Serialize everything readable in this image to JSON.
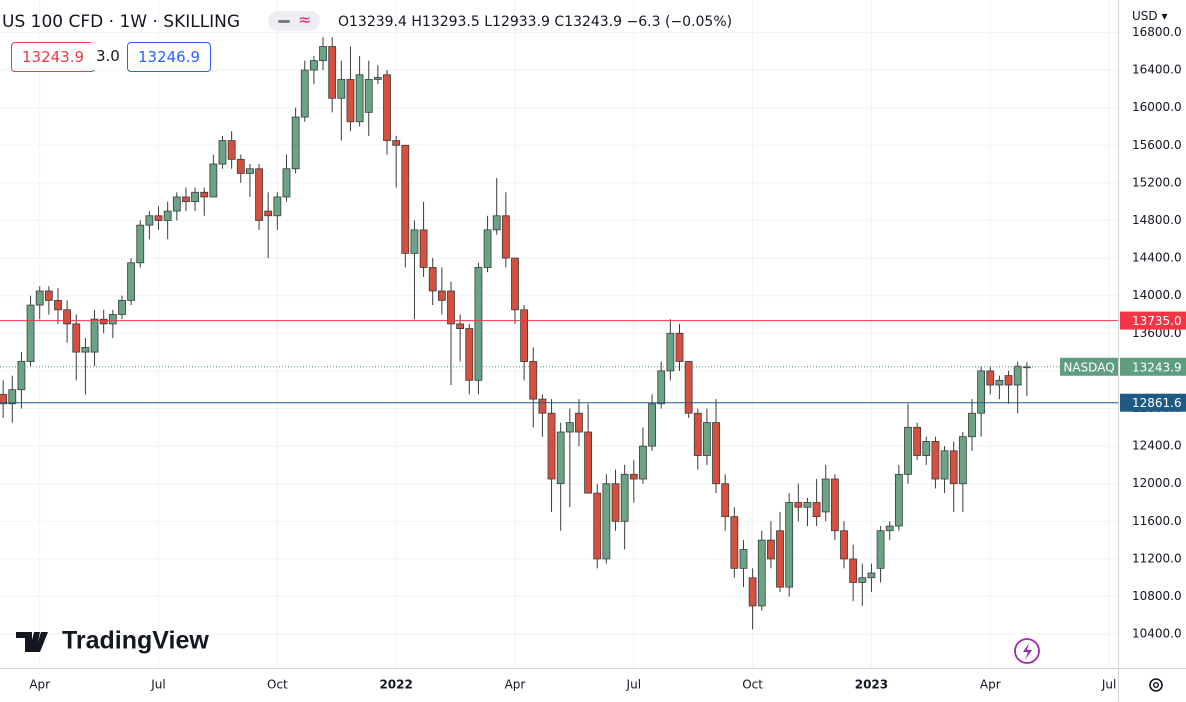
{
  "header": {
    "title": "US 100 CFD · 1W · SKILLING",
    "open": "O13239.4",
    "high": "H13293.5",
    "low": "L12933.9",
    "close": "C13243.9",
    "change": "−6.3 (−0.05%)",
    "bid": "13243.9",
    "spread": "3.0",
    "ask": "13246.9",
    "currency": "USD",
    "watermark": "TradingView"
  },
  "chart_data": {
    "type": "candlestick",
    "categories": [
      null,
      null,
      null,
      null,
      null,
      "Apr",
      null,
      null,
      null,
      null,
      null,
      null,
      null,
      null,
      null,
      null,
      null,
      null,
      "Jul",
      null,
      null,
      null,
      null,
      null,
      null,
      null,
      null,
      null,
      null,
      null,
      null,
      "Oct",
      null,
      null,
      null,
      null,
      null,
      null,
      null,
      null,
      null,
      null,
      null,
      null,
      "2022",
      null,
      null,
      null,
      null,
      null,
      null,
      null,
      null,
      null,
      null,
      null,
      null,
      "Apr",
      null,
      null,
      null,
      null,
      null,
      null,
      null,
      null,
      null,
      null,
      null,
      null,
      "Jul",
      null,
      null,
      null,
      null,
      null,
      null,
      null,
      null,
      null,
      null,
      null,
      null,
      "Oct",
      null,
      null,
      null,
      null,
      null,
      null,
      null,
      null,
      null,
      null,
      null,
      null,
      "2023",
      null,
      null,
      null,
      null,
      null,
      null,
      null,
      null,
      null,
      null,
      null,
      null,
      "Apr",
      null,
      null,
      null,
      null,
      null,
      null,
      null,
      null,
      null,
      null,
      null,
      null,
      "Jul",
      null
    ],
    "open": [
      12800,
      12950,
      12850,
      13000,
      13300,
      13900,
      14050,
      13950,
      13850,
      13700,
      13400,
      13400,
      13750,
      13700,
      13800,
      13950,
      14350,
      14750,
      14850,
      14800,
      14900,
      15050,
      15000,
      15100,
      15050,
      15400,
      15650,
      15450,
      15300,
      15350,
      14900,
      14850,
      15050,
      15350,
      15900,
      16400,
      16500,
      16650,
      16100,
      16300,
      15850,
      15950,
      16300,
      16350,
      15650,
      15600,
      14450,
      14700,
      14300,
      14050,
      14050,
      13700,
      13650,
      13100,
      14300,
      14700,
      14850,
      14400,
      13850,
      13300,
      12900,
      12750,
      12000,
      12550,
      12750,
      12550,
      11900,
      11200,
      12000,
      11600,
      12100,
      12050,
      12400,
      12850,
      13200,
      13600,
      13300,
      12750,
      12300,
      12650,
      12000,
      11650,
      11100,
      11000,
      10700,
      11400,
      11500,
      10900,
      11800,
      11750,
      11800,
      11700,
      12050,
      11500,
      11200,
      10950,
      11000,
      11100,
      11500,
      11550,
      12100,
      12600,
      12300,
      12450,
      12050,
      12350,
      12000,
      12500,
      12750,
      13200,
      13050,
      13150,
      13050,
      13239.4,
      null,
      null,
      null,
      null,
      null,
      null,
      null,
      null,
      null,
      null
    ],
    "high": [
      13050,
      13100,
      13150,
      13400,
      14000,
      14100,
      14100,
      14080,
      13950,
      13800,
      13550,
      13850,
      13850,
      13850,
      14000,
      14400,
      14800,
      14900,
      14950,
      15000,
      15100,
      15150,
      15150,
      15150,
      15500,
      15700,
      15750,
      15500,
      15400,
      15400,
      15100,
      15100,
      15500,
      16000,
      16500,
      16550,
      16750,
      16750,
      16500,
      16650,
      16550,
      16500,
      16450,
      16400,
      15700,
      15600,
      14800,
      15000,
      14400,
      14300,
      14150,
      13800,
      13700,
      14350,
      14850,
      15250,
      15100,
      14400,
      13900,
      13450,
      12950,
      12900,
      12650,
      12800,
      12900,
      12850,
      12000,
      12100,
      12150,
      12200,
      12250,
      12600,
      12950,
      13300,
      13750,
      13700,
      13300,
      12800,
      12800,
      12900,
      12100,
      11750,
      11400,
      11100,
      11500,
      11600,
      11700,
      11900,
      12000,
      11850,
      12050,
      12200,
      12100,
      11600,
      11350,
      11150,
      11150,
      11550,
      11600,
      12200,
      12850,
      12650,
      12500,
      12500,
      12400,
      12450,
      12550,
      12900,
      13250,
      13250,
      13150,
      13200,
      13300,
      13293.5,
      null,
      null,
      null,
      null,
      null,
      null,
      null,
      null,
      null,
      null
    ],
    "low": [
      12300,
      12700,
      12650,
      12800,
      13250,
      13750,
      13800,
      13700,
      13500,
      13100,
      12950,
      13250,
      13600,
      13550,
      13750,
      13900,
      14300,
      14600,
      14700,
      14600,
      14800,
      14900,
      14900,
      14850,
      15050,
      15350,
      15350,
      15200,
      15050,
      14700,
      14400,
      14700,
      15000,
      15300,
      15850,
      16250,
      16400,
      15950,
      15650,
      15750,
      15800,
      15700,
      16250,
      15500,
      15150,
      14300,
      13750,
      14200,
      13900,
      13800,
      13050,
      13300,
      12950,
      12950,
      14250,
      14650,
      14300,
      13700,
      13100,
      12600,
      12500,
      11700,
      11500,
      11750,
      12400,
      11900,
      11100,
      11150,
      11500,
      11300,
      11800,
      12000,
      12350,
      12800,
      13100,
      13200,
      12700,
      12150,
      12200,
      11900,
      11500,
      11000,
      10900,
      10450,
      10650,
      11100,
      10850,
      10800,
      11600,
      11550,
      11550,
      11600,
      11400,
      11100,
      10750,
      10700,
      10850,
      10950,
      11400,
      11500,
      12000,
      12250,
      12200,
      11950,
      11900,
      11700,
      11700,
      12350,
      12500,
      12950,
      12900,
      12850,
      12750,
      12933.9,
      null,
      null,
      null,
      null,
      null,
      null,
      null,
      null,
      null,
      null
    ],
    "close": [
      12950,
      12850,
      13000,
      13300,
      13900,
      14050,
      13950,
      13850,
      13700,
      13400,
      13450,
      13750,
      13700,
      13800,
      13950,
      14350,
      14750,
      14850,
      14800,
      14900,
      15050,
      15000,
      15100,
      15050,
      15400,
      15650,
      15450,
      15300,
      15350,
      14800,
      14850,
      15050,
      15350,
      15900,
      16400,
      16500,
      16650,
      16100,
      16300,
      15850,
      16350,
      16300,
      16320,
      15650,
      15600,
      14450,
      14700,
      14300,
      14050,
      13950,
      13700,
      13650,
      13100,
      14300,
      14700,
      14850,
      14400,
      13850,
      13300,
      12900,
      12750,
      12050,
      12550,
      12650,
      12550,
      11900,
      11200,
      12000,
      11600,
      12100,
      12050,
      12400,
      12850,
      13200,
      13600,
      13300,
      12750,
      12300,
      12650,
      12000,
      11650,
      11100,
      11300,
      10700,
      11400,
      11200,
      10900,
      11800,
      11750,
      11800,
      11650,
      12050,
      11500,
      11200,
      10950,
      11000,
      11050,
      11500,
      11550,
      12100,
      12600,
      12300,
      12450,
      12050,
      12350,
      12000,
      12500,
      12750,
      13200,
      13050,
      13100,
      13050,
      13250,
      13243.9,
      null,
      null,
      null,
      null,
      null,
      null,
      null,
      null,
      null,
      null
    ],
    "up_color": "#6aa484",
    "down_color": "#d5503f",
    "grid": true,
    "ylim": [
      10040,
      17145
    ],
    "yticks": [
      {
        "value": 10400,
        "label": "10400.0"
      },
      {
        "value": 10800,
        "label": "10800.0"
      },
      {
        "value": 11200,
        "label": "11200.0"
      },
      {
        "value": 11600,
        "label": "11600.0"
      },
      {
        "value": 12000,
        "label": "12000.0"
      },
      {
        "value": 12400,
        "label": "12400.0"
      },
      {
        "value": 12800,
        "label": "12800.0"
      },
      {
        "value": 13200,
        "label": "13200.0"
      },
      {
        "value": 13600,
        "label": "13600.0"
      },
      {
        "value": 14000,
        "label": "14000.0"
      },
      {
        "value": 14400,
        "label": "14400.0"
      },
      {
        "value": 14800,
        "label": "14800.0"
      },
      {
        "value": 15200,
        "label": "15200.0"
      },
      {
        "value": 15600,
        "label": "15600.0"
      },
      {
        "value": 16000,
        "label": "16000.0"
      },
      {
        "value": 16400,
        "label": "16400.0"
      },
      {
        "value": 16800,
        "label": "16800.0"
      }
    ],
    "hlines": [
      {
        "value": 13735,
        "label": "13735.0",
        "color": "#f23645"
      },
      {
        "value": 12861.6,
        "label": "12861.6",
        "color": "#1f5a85"
      }
    ],
    "last_price": {
      "name": "NASDAQ",
      "label": "13243.9",
      "color": "#5e9d7f"
    }
  }
}
